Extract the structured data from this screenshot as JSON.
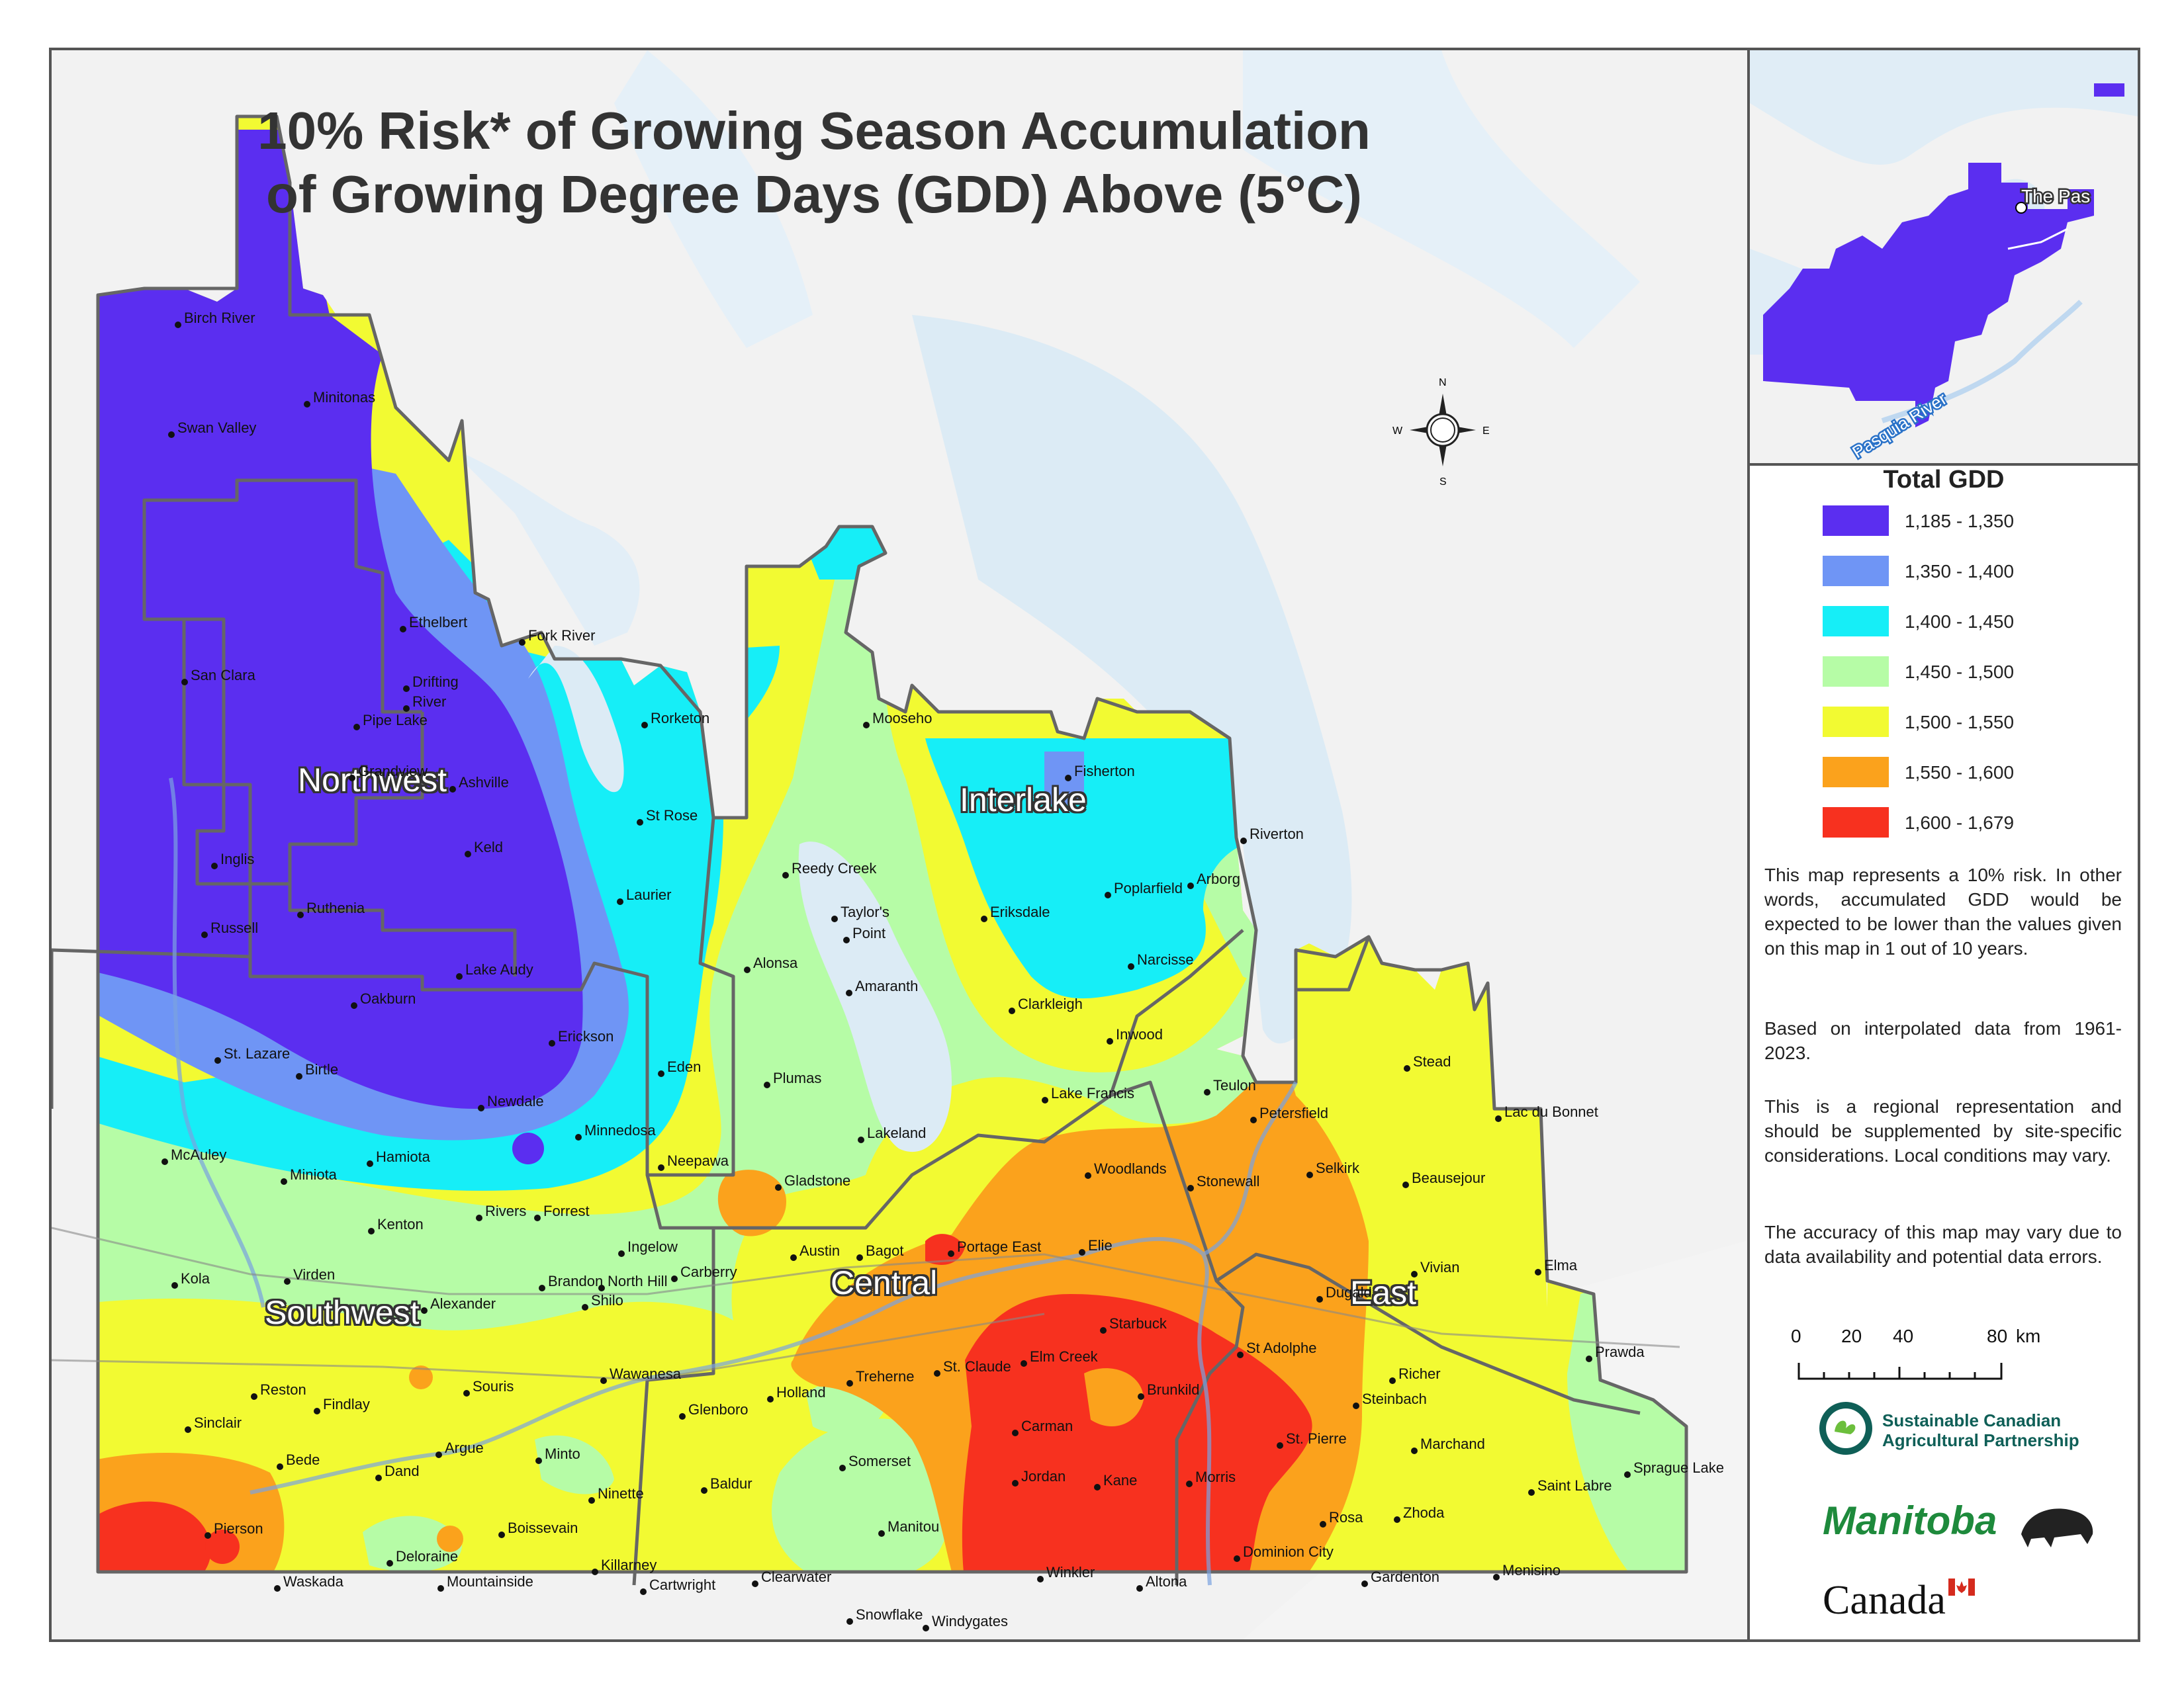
{
  "title_line1": "10% Risk* of Growing Season Accumulation",
  "title_line2": "of Growing Degree Days (GDD) Above (5°C)",
  "regions": {
    "northwest": "Northwest",
    "interlake": "Interlake",
    "southwest": "Southwest",
    "central": "Central",
    "east": "East"
  },
  "compass": {
    "n": "N",
    "s": "S",
    "e": "E",
    "w": "W"
  },
  "inset": {
    "town": "The Pas",
    "river": "Pasquia River"
  },
  "legend": {
    "title": "Total GDD",
    "classes": [
      {
        "label": "1,185 - 1,350",
        "color": "#5b2ef0"
      },
      {
        "label": "1,350 - 1,400",
        "color": "#6f95f5"
      },
      {
        "label": "1,400 - 1,450",
        "color": "#16eef7"
      },
      {
        "label": "1,450 - 1,500",
        "color": "#b6fca6"
      },
      {
        "label": "1,500 - 1,550",
        "color": "#f2fa32"
      },
      {
        "label": "1,550 - 1,600",
        "color": "#fba21c"
      },
      {
        "label": "1,600 - 1,679",
        "color": "#f7311f"
      }
    ]
  },
  "notes": [
    "This map represents a 10% risk. In other words, accumulated GDD would be expected to be lower than the values given on this map in 1 out of 10 years.",
    "Based on interpolated data from 1961-2023.",
    "This is a regional representation and should be supplemented by site-specific considerations. Local conditions may vary.",
    "The accuracy of this map may vary due to data availability and potential data errors."
  ],
  "scale": {
    "t0": "0",
    "t1": "20",
    "t2": "40",
    "t3": "80",
    "unit": "km"
  },
  "logos": {
    "scap_line1": "Sustainable Canadian",
    "scap_line2": "Agricultural Partnership",
    "manitoba": "Manitoba",
    "canada": "Canada"
  },
  "cities": [
    "Birch River",
    "Minitonas",
    "Swan Valley",
    "Ethelbert",
    "Fork River",
    "San Clara",
    "Drifting",
    "River",
    "Pipe Lake",
    "Rorketon",
    "Mooseho",
    "Grandview",
    "Ashville",
    "St Rose",
    "Fisherton",
    "Keld",
    "Riverton",
    "Inglis",
    "Reedy Creek",
    "Arborg",
    "Ruthenia",
    "Laurier",
    "Taylor's",
    "Point",
    "Poplarfield",
    "Russell",
    "Eriksdale",
    "Lake Audy",
    "Alonsa",
    "Narcisse",
    "Amaranth",
    "Oakburn",
    "Clarkleigh",
    "Erickson",
    "Inwood",
    "St. Lazare",
    "Birtle",
    "Eden",
    "Stead",
    "Plumas",
    "Teulon",
    "Lake Francis",
    "Newdale",
    "Petersfield",
    "Lac du Bonnet",
    "Minnedosa",
    "Lakeland",
    "McAuley",
    "Hamiota",
    "Neepawa",
    "Selkirk",
    "Woodlands",
    "Miniota",
    "Stonewall",
    "Beausejour",
    "Gladstone",
    "Rivers",
    "Forrest",
    "Kenton",
    "Ingelow",
    "Portage East",
    "Elie",
    "Austin",
    "Bagot",
    "Vivian",
    "Elma",
    "Kola",
    "Virden",
    "Brandon",
    "North Hill",
    "Carberry",
    "Dugald",
    "Alexander",
    "Shilo",
    "Starbuck",
    "St Adolphe",
    "St. Claude",
    "Elm Creek",
    "Wawanesa",
    "Richer",
    "Souris",
    "Treherne",
    "Reston",
    "Holland",
    "Brunkild",
    "Steinbach",
    "Findlay",
    "Glenboro",
    "Sinclair",
    "Carman",
    "St. Pierre",
    "Bede",
    "Argue",
    "Minto",
    "Marchand",
    "Dand",
    "Somerset",
    "Sprague Lake",
    "Baldur",
    "Jordan",
    "Kane",
    "Morris",
    "Saint Labre",
    "Ninette",
    "Zhoda",
    "Rosa",
    "Pierson",
    "Boissevain",
    "Manitou",
    "Dominion City",
    "Deloraine",
    "Killarney",
    "Menisino",
    "Waskada",
    "Mountainside",
    "Cartwright",
    "Clearwater",
    "Winkler",
    "Altona",
    "Gardenton",
    "Snowflake",
    "Windygates",
    "Prawda"
  ]
}
